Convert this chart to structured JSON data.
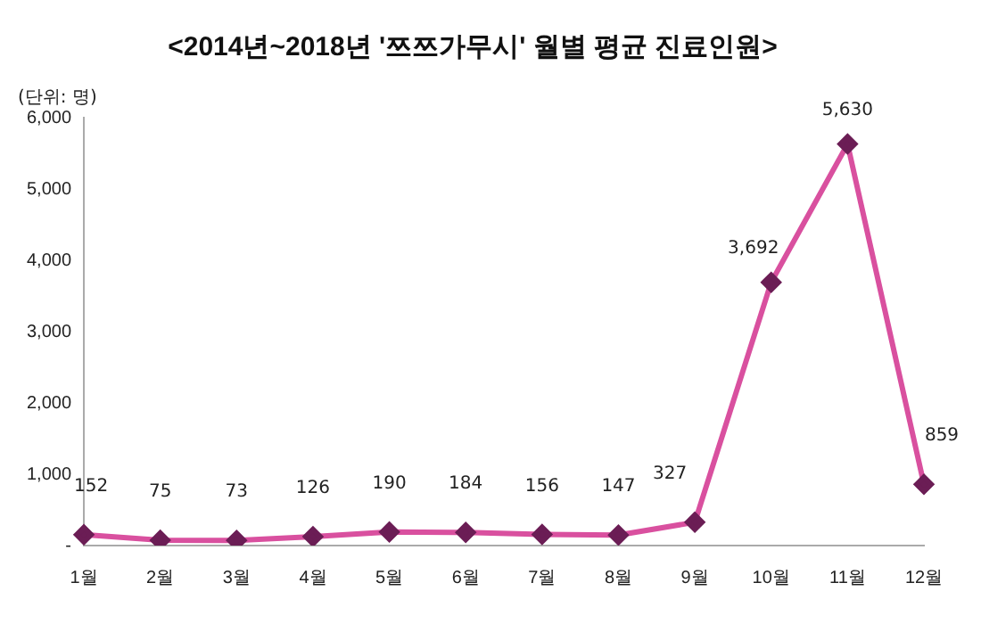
{
  "chart_data": {
    "type": "line",
    "title": "<2014년~2018년 '쯔쯔가무시' 월별 평균 진료인원>",
    "annotations": [
      "(단위: 명)"
    ],
    "categories": [
      "1월",
      "2월",
      "3월",
      "4월",
      "5월",
      "6월",
      "7월",
      "8월",
      "9월",
      "10월",
      "11월",
      "12월"
    ],
    "series": [
      {
        "color": "#d9509f",
        "values": [
          152,
          75,
          73,
          126,
          190,
          184,
          156,
          147,
          327,
          3692,
          5630,
          859
        ]
      }
    ],
    "value_labels": [
      "152",
      "75",
      "73",
      "126",
      "190",
      "184",
      "156",
      "147",
      "327",
      "3,692",
      "5,630",
      "859"
    ],
    "ylim": [
      0,
      6000
    ],
    "yticks": [
      {
        "value": 0,
        "label": "-"
      },
      {
        "value": 1000,
        "label": "1,000"
      },
      {
        "value": 2000,
        "label": "2,000"
      },
      {
        "value": 3000,
        "label": "3,000"
      },
      {
        "value": 4000,
        "label": "4,000"
      },
      {
        "value": 5000,
        "label": "5,000"
      },
      {
        "value": 6000,
        "label": "6,000"
      }
    ],
    "grid": false,
    "legend": false,
    "marker": "diamond",
    "line_style": "solid"
  }
}
